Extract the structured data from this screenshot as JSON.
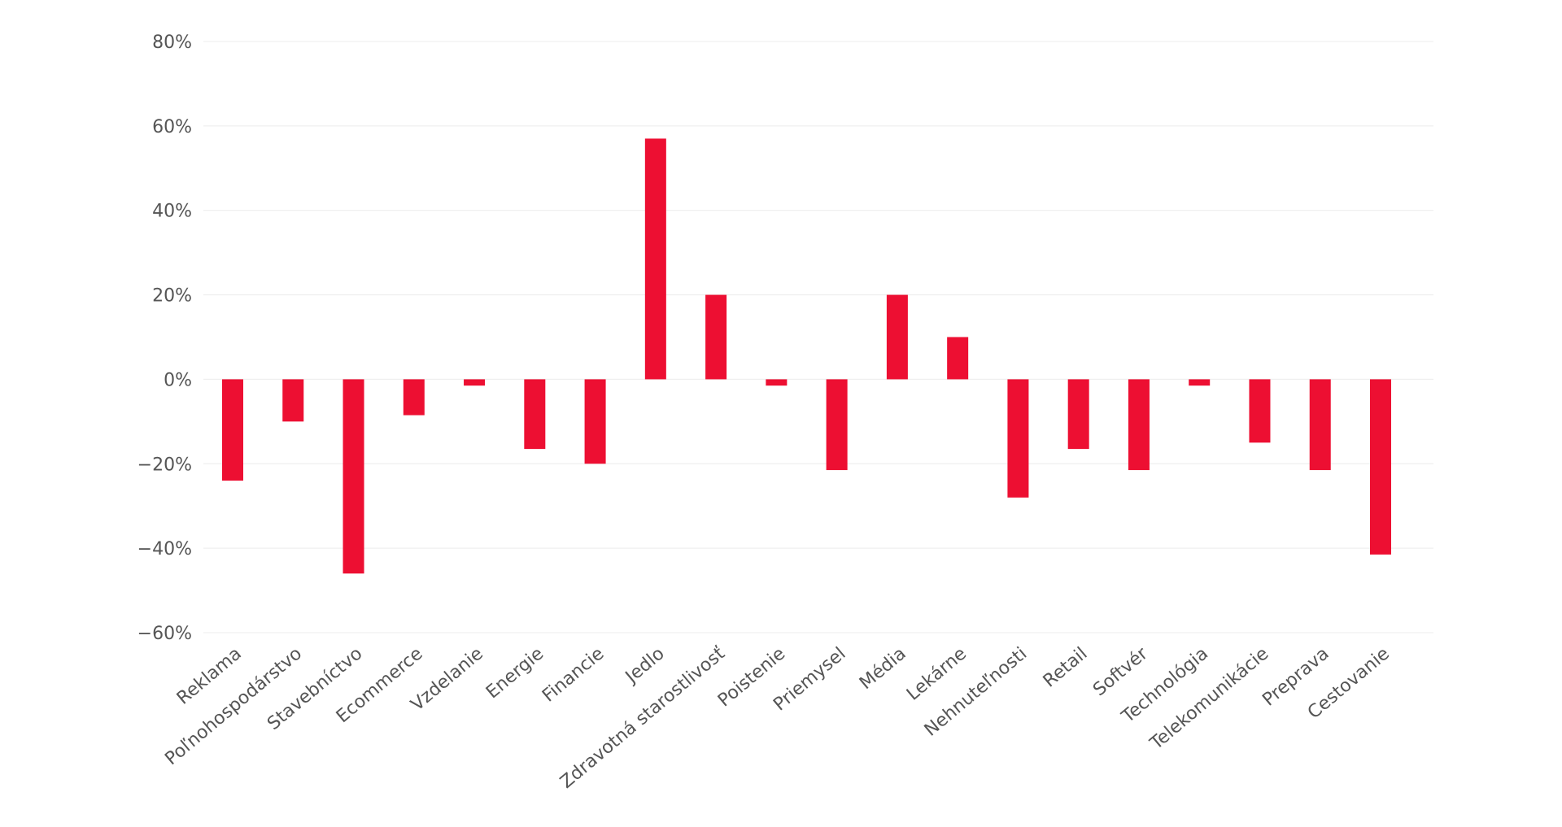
{
  "chart_data": {
    "type": "bar",
    "categories": [
      "Reklama",
      "Poľnohospodárstvo",
      "Stavebníctvo",
      "Ecommerce",
      "Vzdelanie",
      "Energie",
      "Financie",
      "Jedlo",
      "Zdravotná starostlivosť",
      "Poistenie",
      "Priemysel",
      "Média",
      "Lekárne",
      "Nehnuteľnosti",
      "Retail",
      "Softvér",
      "Technológia",
      "Telekomunikácie",
      "Preprava",
      "Cestovanie"
    ],
    "values": [
      -24,
      -10,
      -46,
      -8.5,
      -1.5,
      -16.5,
      -20,
      57,
      20,
      -1.5,
      -21.5,
      20,
      10,
      -28,
      -16.5,
      -21.5,
      -1.5,
      -15,
      -21.5,
      -41.5
    ],
    "yticks": [
      "80%",
      "60%",
      "40%",
      "20%",
      "0%",
      "−20%",
      "−40%",
      "−60%"
    ],
    "ytick_values": [
      80,
      60,
      40,
      20,
      0,
      -20,
      -40,
      -60
    ],
    "ylim": [
      -60,
      80
    ],
    "grid": true,
    "bar_color": "#ed0f32",
    "grid_color": "#ececec",
    "label_color": "#555555",
    "title": "",
    "xlabel": "",
    "ylabel": ""
  }
}
